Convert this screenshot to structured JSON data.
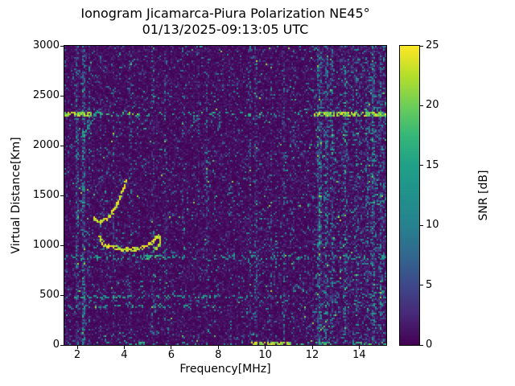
{
  "chart_data": {
    "type": "heatmap",
    "title": "Ionogram Jicamarca-Piura Polarization NE45°",
    "subtitle": "01/13/2025-09:13:05 UTC",
    "xlabel": "Frequency[MHz]",
    "ylabel": "Virtual Distance[Km]",
    "colorbar_label": "SNR [dB]",
    "colormap": "viridis",
    "xlim": [
      1.45,
      15.15
    ],
    "ylim": [
      0,
      3000
    ],
    "clim": [
      0,
      25
    ],
    "xticks": [
      2,
      4,
      6,
      8,
      10,
      12,
      14
    ],
    "yticks": [
      0,
      500,
      1000,
      1500,
      2000,
      2500,
      3000
    ],
    "colorbar_ticks": [
      0,
      5,
      10,
      15,
      20,
      25
    ],
    "viridis_colors": [
      "#440154",
      "#482878",
      "#3e4989",
      "#31688e",
      "#26828e",
      "#21918c",
      "#1fa088",
      "#35b779",
      "#6cce59",
      "#b5de2b",
      "#fde725"
    ],
    "seed": 91305,
    "noise": {
      "base_scale": 0.85,
      "speckle_prob": 0.055,
      "speckle_min": 3,
      "speckle_max": 11,
      "bright_prob": 0.007,
      "bright_min": 10,
      "bright_max": 22
    },
    "rfi_stripes": [
      {
        "f": 2.0,
        "w": 0.035,
        "s": 1.5
      },
      {
        "f": 2.27,
        "w": 0.04,
        "s": 2.2
      },
      {
        "f": 2.5,
        "w": 0.03,
        "s": 0.8
      },
      {
        "f": 3.0,
        "w": 0.025,
        "s": 0.5
      },
      {
        "f": 3.55,
        "w": 0.025,
        "s": 0.5
      },
      {
        "f": 4.25,
        "w": 0.03,
        "s": 0.6
      },
      {
        "f": 5.22,
        "w": 0.035,
        "s": 0.8
      },
      {
        "f": 5.75,
        "w": 0.025,
        "s": 0.5
      },
      {
        "f": 6.5,
        "w": 0.025,
        "s": 0.4
      },
      {
        "f": 7.15,
        "w": 0.025,
        "s": 0.4
      },
      {
        "f": 7.5,
        "w": 0.03,
        "s": 0.6
      },
      {
        "f": 8.5,
        "w": 0.025,
        "s": 0.5
      },
      {
        "f": 9.35,
        "w": 0.03,
        "s": 0.6
      },
      {
        "f": 9.6,
        "w": 0.035,
        "s": 1.0
      },
      {
        "f": 10.25,
        "w": 0.03,
        "s": 0.5
      },
      {
        "f": 10.8,
        "w": 0.03,
        "s": 0.6
      },
      {
        "f": 11.2,
        "w": 0.03,
        "s": 0.5
      },
      {
        "f": 12.3,
        "w": 0.07,
        "s": 1.7
      },
      {
        "f": 12.6,
        "w": 0.05,
        "s": 1.3
      },
      {
        "f": 12.85,
        "w": 0.04,
        "s": 0.8
      },
      {
        "f": 13.4,
        "w": 0.04,
        "s": 1.0
      },
      {
        "f": 13.9,
        "w": 0.035,
        "s": 0.7
      },
      {
        "f": 14.35,
        "w": 0.04,
        "s": 0.8
      },
      {
        "f": 14.6,
        "w": 0.06,
        "s": 1.3
      },
      {
        "f": 14.9,
        "w": 0.045,
        "s": 1.0
      },
      {
        "f": 15.05,
        "w": 0.035,
        "s": 0.8
      },
      {
        "f": 13.8,
        "w": 1.2,
        "s": 0.3
      }
    ],
    "echo_lines": [
      {
        "km": 2320,
        "hw": 14,
        "segments": [
          {
            "f0": 1.45,
            "f1": 2.6,
            "density": 0.7,
            "snr": 21
          },
          {
            "f0": 2.6,
            "f1": 4.2,
            "density": 0.15,
            "snr": 15
          },
          {
            "f0": 4.2,
            "f1": 4.6,
            "density": 0.45,
            "snr": 19
          },
          {
            "f0": 4.6,
            "f1": 12.1,
            "density": 0.12,
            "snr": 14
          },
          {
            "f0": 12.1,
            "f1": 15.15,
            "density": 0.65,
            "snr": 21
          }
        ]
      },
      {
        "km": 880,
        "hw": 10,
        "segments": [
          {
            "f0": 1.45,
            "f1": 4.9,
            "density": 0.2,
            "snr": 13
          },
          {
            "f0": 4.9,
            "f1": 5.7,
            "density": 0.5,
            "snr": 16
          },
          {
            "f0": 5.7,
            "f1": 15.15,
            "density": 0.18,
            "snr": 13
          }
        ]
      },
      {
        "km": 480,
        "hw": 10,
        "segments": [
          {
            "f0": 1.45,
            "f1": 9.2,
            "density": 0.3,
            "snr": 14
          },
          {
            "f0": 9.2,
            "f1": 15.15,
            "density": 0.12,
            "snr": 12
          }
        ]
      },
      {
        "km": 385,
        "hw": 10,
        "segments": [
          {
            "f0": 1.45,
            "f1": 8.2,
            "density": 0.18,
            "snr": 13
          }
        ]
      },
      {
        "km": 15,
        "hw": 14,
        "segments": [
          {
            "f0": 1.45,
            "f1": 4.2,
            "density": 0.1,
            "snr": 13
          },
          {
            "f0": 4.2,
            "f1": 9.4,
            "density": 0.15,
            "snr": 14
          },
          {
            "f0": 9.4,
            "f1": 11.1,
            "density": 0.75,
            "snr": 22
          },
          {
            "f0": 11.1,
            "f1": 15.15,
            "density": 0.28,
            "snr": 16
          }
        ]
      }
    ],
    "echo_traces": [
      {
        "name": "f-trace-main",
        "snr": 23,
        "hw": 18,
        "density": 0.85,
        "points": [
          [
            2.95,
            1085
          ],
          [
            3.05,
            1030
          ],
          [
            3.2,
            1000
          ],
          [
            3.45,
            980
          ],
          [
            3.75,
            965
          ],
          [
            4.1,
            958
          ],
          [
            4.45,
            960
          ],
          [
            4.75,
            972
          ],
          [
            5.0,
            995
          ],
          [
            5.2,
            1030
          ],
          [
            5.35,
            1070
          ],
          [
            5.45,
            1105
          ]
        ]
      },
      {
        "name": "f-trace-hook",
        "snr": 21,
        "hw": 15,
        "density": 0.7,
        "points": [
          [
            5.45,
            1105
          ],
          [
            5.52,
            1060
          ],
          [
            5.5,
            1010
          ],
          [
            5.4,
            975
          ],
          [
            5.28,
            960
          ]
        ]
      },
      {
        "name": "second-hop-arc",
        "snr": 23,
        "hw": 18,
        "density": 0.8,
        "points": [
          [
            2.7,
            1270
          ],
          [
            2.85,
            1245
          ],
          [
            3.0,
            1240
          ],
          [
            3.2,
            1258
          ],
          [
            3.4,
            1300
          ],
          [
            3.6,
            1365
          ],
          [
            3.75,
            1440
          ],
          [
            3.88,
            1520
          ],
          [
            4.0,
            1600
          ],
          [
            4.08,
            1650
          ]
        ]
      },
      {
        "name": "faint-upper-trace",
        "snr": 12,
        "hw": 14,
        "density": 0.3,
        "points": [
          [
            2.05,
            2060
          ],
          [
            2.25,
            2110
          ],
          [
            2.5,
            2190
          ],
          [
            2.7,
            2270
          ],
          [
            2.88,
            2350
          ]
        ]
      }
    ]
  }
}
